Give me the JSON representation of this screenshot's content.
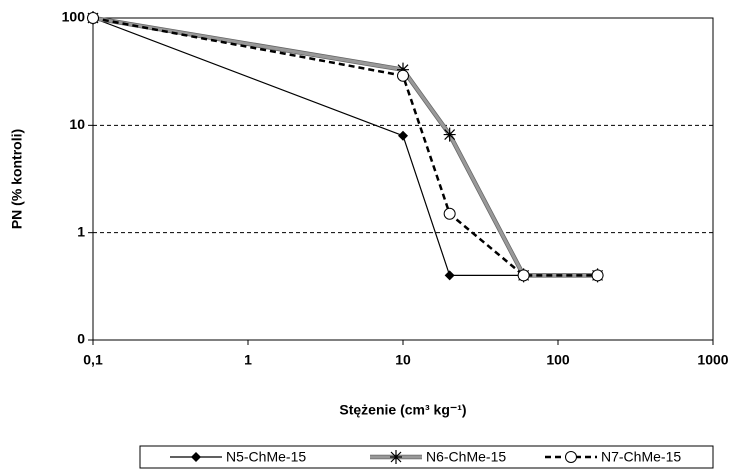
{
  "chart_data": {
    "type": "line",
    "xlabel": "Stężenie (cm³ kg⁻¹)",
    "ylabel": "PN (% kontroli)",
    "x": [
      0.1,
      10,
      20,
      60,
      180
    ],
    "series": [
      {
        "name": "N5-ChMe-15",
        "color": "#000000",
        "values": [
          100,
          8,
          0.4,
          0.4,
          0.4
        ]
      },
      {
        "name": "N6-ChMe-15",
        "color": "#999999",
        "values": [
          100,
          33,
          8.2,
          0.4,
          0.4
        ]
      },
      {
        "name": "N7-ChMe-15",
        "color": "#000000",
        "values": [
          100,
          29,
          1.5,
          0.4,
          0.4
        ]
      }
    ],
    "xscale": "log",
    "yscale": "log",
    "xlim": [
      0.1,
      1000
    ],
    "ylim": [
      0.1,
      100
    ],
    "xticks": [
      {
        "value": 0.1,
        "label": "0,1"
      },
      1,
      10,
      100,
      1000
    ],
    "yticks": [
      {
        "value": 0.1,
        "label": "0"
      },
      1,
      10,
      100
    ],
    "grid": true,
    "legend": "bottom"
  }
}
